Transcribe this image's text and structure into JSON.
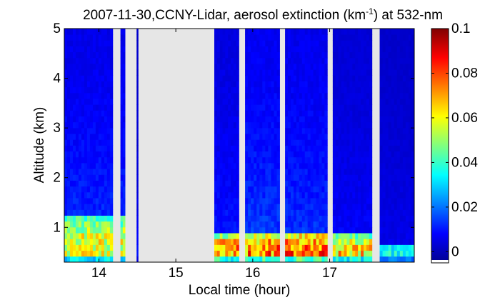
{
  "chart_data": {
    "type": "heatmap",
    "title_prefix": "2007-11-30,CCNY-Lidar, aerosol extinction (km",
    "title_sup": "-1",
    "title_suffix": ") at 532-nm",
    "xlabel": "Local time (hour)",
    "ylabel": "Altitude (km)",
    "xlim": [
      13.55,
      18.1
    ],
    "ylim": [
      0.3,
      5
    ],
    "xticks": [
      14,
      15,
      16,
      17
    ],
    "yticks": [
      1,
      2,
      3,
      4,
      5
    ],
    "colorbar": {
      "range": [
        -0.005,
        0.1
      ],
      "ticks": [
        0,
        0.02,
        0.04,
        0.06,
        0.08,
        0.1
      ],
      "tick_labels": [
        "0",
        "0.02",
        "0.04",
        "0.06",
        "0.08",
        "0.1"
      ]
    },
    "colors": {
      "no_data": "#e6e6e6",
      "colormap": "jet"
    },
    "segments": [
      {
        "t0": 13.55,
        "t1": 14.18,
        "boundary_layer_top_km": 1.2,
        "peak_extinction": 0.07,
        "background_extinction": 0.012
      },
      {
        "t0": 14.28,
        "t1": 14.34,
        "boundary_layer_top_km": 1.2,
        "peak_extinction": 0.07,
        "background_extinction": 0.012
      },
      {
        "t0": 14.49,
        "t1": 14.51,
        "boundary_layer_top_km": 1.0,
        "peak_extinction": 0.01,
        "background_extinction": 0.006
      },
      {
        "t0": 15.5,
        "t1": 15.82,
        "boundary_layer_top_km": 0.9,
        "peak_extinction": 0.085,
        "background_extinction": 0.01
      },
      {
        "t0": 15.9,
        "t1": 16.35,
        "boundary_layer_top_km": 0.9,
        "peak_extinction": 0.09,
        "background_extinction": 0.014
      },
      {
        "t0": 16.42,
        "t1": 16.97,
        "boundary_layer_top_km": 0.9,
        "peak_extinction": 0.095,
        "background_extinction": 0.013
      },
      {
        "t0": 17.04,
        "t1": 17.55,
        "boundary_layer_top_km": 0.85,
        "peak_extinction": 0.08,
        "background_extinction": 0.008
      },
      {
        "t0": 17.65,
        "t1": 18.1,
        "boundary_layer_top_km": 0.7,
        "peak_extinction": 0.045,
        "background_extinction": 0.006
      }
    ]
  }
}
